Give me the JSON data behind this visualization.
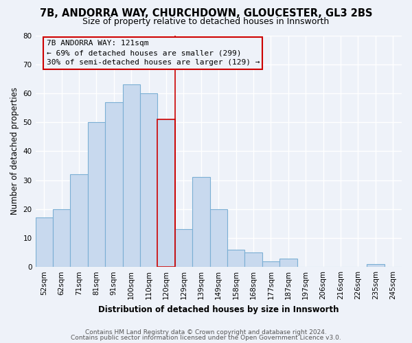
{
  "title": "7B, ANDORRA WAY, CHURCHDOWN, GLOUCESTER, GL3 2BS",
  "subtitle": "Size of property relative to detached houses in Innsworth",
  "xlabel": "Distribution of detached houses by size in Innsworth",
  "ylabel": "Number of detached properties",
  "bar_labels": [
    "52sqm",
    "62sqm",
    "71sqm",
    "81sqm",
    "91sqm",
    "100sqm",
    "110sqm",
    "120sqm",
    "129sqm",
    "139sqm",
    "149sqm",
    "158sqm",
    "168sqm",
    "177sqm",
    "187sqm",
    "197sqm",
    "206sqm",
    "216sqm",
    "226sqm",
    "235sqm",
    "245sqm"
  ],
  "bar_values": [
    17,
    20,
    32,
    50,
    57,
    63,
    60,
    51,
    13,
    31,
    20,
    6,
    5,
    2,
    3,
    0,
    0,
    0,
    0,
    1,
    0
  ],
  "bar_color": "#c8d9ee",
  "bar_edge_color": "#7bafd4",
  "highlight_index": 7,
  "highlight_edge_color": "#cc0000",
  "vline_color": "#cc0000",
  "annotation_title": "7B ANDORRA WAY: 121sqm",
  "annotation_line1": "← 69% of detached houses are smaller (299)",
  "annotation_line2": "30% of semi-detached houses are larger (129) →",
  "annotation_box_edge": "#cc0000",
  "ylim": [
    0,
    80
  ],
  "yticks": [
    0,
    10,
    20,
    30,
    40,
    50,
    60,
    70,
    80
  ],
  "footer1": "Contains HM Land Registry data © Crown copyright and database right 2024.",
  "footer2": "Contains public sector information licensed under the Open Government Licence v3.0.",
  "bg_color": "#eef2f9",
  "grid_color": "#ffffff",
  "title_fontsize": 10.5,
  "subtitle_fontsize": 9,
  "axis_label_fontsize": 8.5,
  "tick_fontsize": 7.5,
  "annotation_fontsize": 8,
  "footer_fontsize": 6.5
}
